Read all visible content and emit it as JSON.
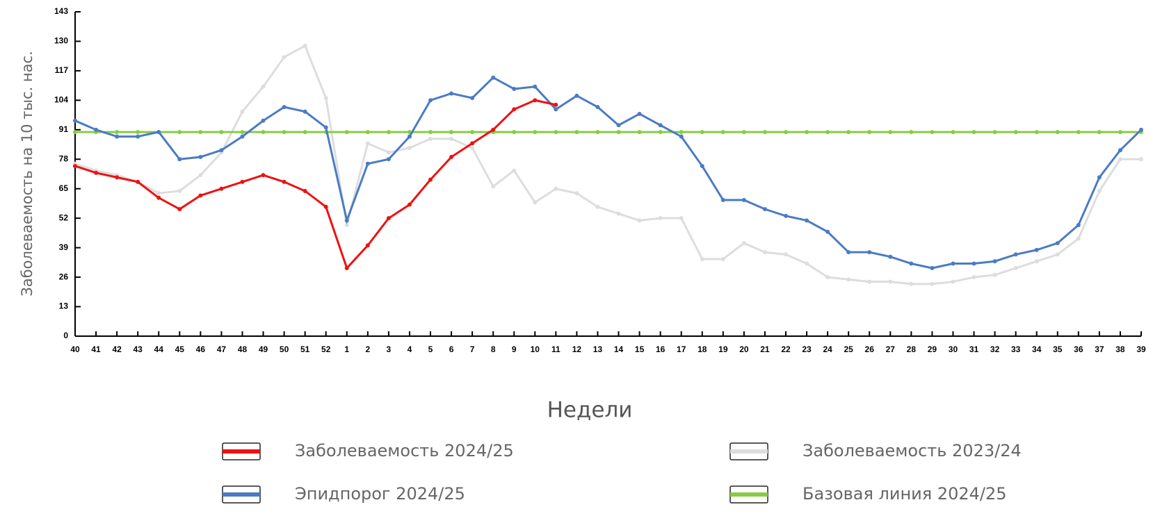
{
  "chart_data": {
    "type": "line",
    "x_label": "Недели",
    "y_label": "Заболеваемость на 10 тыс. нас.",
    "categories": [
      "40",
      "41",
      "42",
      "43",
      "44",
      "45",
      "46",
      "47",
      "48",
      "49",
      "50",
      "51",
      "52",
      "1",
      "2",
      "3",
      "4",
      "5",
      "6",
      "7",
      "8",
      "9",
      "10",
      "11",
      "12",
      "13",
      "14",
      "15",
      "16",
      "17",
      "18",
      "19",
      "20",
      "21",
      "22",
      "23",
      "24",
      "25",
      "26",
      "27",
      "28",
      "29",
      "30",
      "31",
      "32",
      "33",
      "34",
      "35",
      "36",
      "37",
      "38",
      "39"
    ],
    "series": [
      {
        "name": "Заболеваемость 2024/25",
        "color": "#ee1111",
        "values": [
          75,
          72,
          70,
          68,
          61,
          56,
          62,
          65,
          68,
          71,
          68,
          64,
          57,
          30,
          40,
          52,
          58,
          69,
          79,
          85,
          91,
          100,
          104,
          102,
          null,
          null,
          null,
          null,
          null,
          null,
          null,
          null,
          null,
          null,
          null,
          null,
          null,
          null,
          null,
          null,
          null,
          null,
          null,
          null,
          null,
          null,
          null,
          null,
          null,
          null,
          null,
          null
        ]
      },
      {
        "name": "Заболеваемость 2023/24",
        "color": "#dddddd",
        "values": [
          76,
          73,
          71,
          68,
          63,
          64,
          71,
          81,
          99,
          110,
          123,
          128,
          105,
          49,
          85,
          81,
          83,
          87,
          87,
          83,
          66,
          73,
          59,
          65,
          63,
          57,
          54,
          51,
          52,
          52,
          34,
          34,
          41,
          37,
          36,
          32,
          26,
          25,
          24,
          24,
          23,
          23,
          24,
          26,
          27,
          30,
          33,
          36,
          43,
          64,
          78,
          78
        ]
      },
      {
        "name": "Эпидпорог 2024/25",
        "color": "#4a7bc4",
        "values": [
          95,
          91,
          88,
          88,
          90,
          78,
          79,
          82,
          88,
          95,
          101,
          99,
          92,
          51,
          76,
          78,
          88,
          104,
          107,
          105,
          114,
          109,
          110,
          100,
          106,
          101,
          93,
          98,
          93,
          88,
          75,
          60,
          60,
          56,
          53,
          51,
          46,
          37,
          37,
          35,
          32,
          30,
          32,
          32,
          33,
          36,
          38,
          41,
          49,
          70,
          82,
          91
        ]
      },
      {
        "name": "Базовая линия 2024/25",
        "color": "#88cc44",
        "values": [
          90,
          90,
          90,
          90,
          90,
          90,
          90,
          90,
          90,
          90,
          90,
          90,
          90,
          90,
          90,
          90,
          90,
          90,
          90,
          90,
          90,
          90,
          90,
          90,
          90,
          90,
          90,
          90,
          90,
          90,
          90,
          90,
          90,
          90,
          90,
          90,
          90,
          90,
          90,
          90,
          90,
          90,
          90,
          90,
          90,
          90,
          90,
          90,
          90,
          90,
          90,
          90
        ]
      }
    ],
    "ylim": [
      0,
      143
    ],
    "yticks": [
      0,
      13,
      26,
      39,
      52,
      65,
      78,
      91,
      104,
      117,
      130,
      143
    ]
  }
}
